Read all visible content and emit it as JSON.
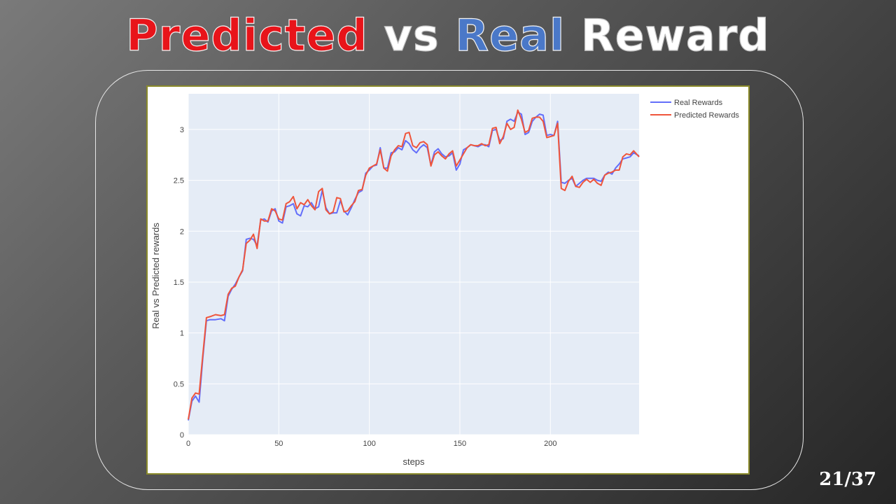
{
  "slide": {
    "title_predicted": "Predicted",
    "title_vs": "vs",
    "title_real": "Real",
    "title_reward": "Reward",
    "page": "21/37"
  },
  "colors": {
    "real": "#636efa",
    "predicted": "#ef553b",
    "plot_bg": "#e5ecf6",
    "title_red": "#e8141a",
    "title_blue": "#4a78c8"
  },
  "chart_data": {
    "type": "line",
    "xlabel": "steps",
    "ylabel": "Real vs Predicted rewards",
    "xlim": [
      0,
      249
    ],
    "ylim": [
      0,
      3.35
    ],
    "xticks": [
      0,
      50,
      100,
      150,
      200
    ],
    "yticks": [
      0,
      0.5,
      1,
      1.5,
      2,
      2.5,
      3
    ],
    "grid": true,
    "legend_position": "top-right-outside",
    "series": [
      {
        "name": "Real Rewards",
        "color": "#636efa",
        "x": [
          0,
          2,
          4,
          6,
          8,
          10,
          12,
          15,
          18,
          20,
          22,
          24,
          26,
          28,
          30,
          32,
          34,
          36,
          38,
          40,
          42,
          44,
          46,
          48,
          50,
          52,
          54,
          56,
          58,
          60,
          62,
          64,
          66,
          68,
          70,
          72,
          74,
          76,
          78,
          80,
          82,
          84,
          86,
          88,
          90,
          92,
          94,
          96,
          98,
          100,
          102,
          104,
          106,
          108,
          110,
          112,
          114,
          116,
          118,
          120,
          122,
          124,
          126,
          128,
          130,
          132,
          134,
          136,
          138,
          140,
          142,
          144,
          146,
          148,
          150,
          152,
          154,
          156,
          158,
          160,
          162,
          164,
          166,
          168,
          170,
          172,
          174,
          176,
          178,
          180,
          182,
          184,
          186,
          188,
          190,
          192,
          194,
          196,
          198,
          200,
          202,
          204,
          206,
          208,
          210,
          212,
          214,
          216,
          218,
          220,
          222,
          224,
          226,
          228,
          230,
          232,
          234,
          236,
          238,
          240,
          242,
          244,
          246,
          249
        ],
        "y": [
          0.14,
          0.33,
          0.38,
          0.32,
          0.75,
          1.12,
          1.13,
          1.13,
          1.14,
          1.12,
          1.36,
          1.43,
          1.48,
          1.55,
          1.61,
          1.92,
          1.93,
          1.92,
          1.86,
          2.11,
          2.12,
          2.09,
          2.2,
          2.22,
          2.1,
          2.08,
          2.24,
          2.25,
          2.27,
          2.17,
          2.15,
          2.25,
          2.24,
          2.28,
          2.22,
          2.24,
          2.4,
          2.23,
          2.17,
          2.18,
          2.18,
          2.3,
          2.2,
          2.16,
          2.23,
          2.31,
          2.38,
          2.4,
          2.57,
          2.6,
          2.64,
          2.65,
          2.82,
          2.62,
          2.62,
          2.77,
          2.78,
          2.82,
          2.8,
          2.89,
          2.86,
          2.8,
          2.77,
          2.82,
          2.85,
          2.82,
          2.65,
          2.78,
          2.81,
          2.76,
          2.73,
          2.74,
          2.77,
          2.6,
          2.66,
          2.8,
          2.82,
          2.85,
          2.84,
          2.83,
          2.85,
          2.85,
          2.83,
          2.99,
          3.0,
          2.89,
          2.91,
          3.08,
          3.1,
          3.08,
          3.17,
          3.15,
          2.95,
          2.97,
          3.08,
          3.12,
          3.15,
          3.14,
          2.94,
          2.95,
          2.94,
          3.08,
          2.48,
          2.47,
          2.5,
          2.52,
          2.44,
          2.47,
          2.5,
          2.52,
          2.52,
          2.52,
          2.5,
          2.49,
          2.55,
          2.58,
          2.56,
          2.62,
          2.66,
          2.71,
          2.72,
          2.73,
          2.77,
          2.74
        ]
      },
      {
        "name": "Predicted Rewards",
        "color": "#ef553b",
        "x": [
          0,
          2,
          4,
          6,
          8,
          10,
          12,
          15,
          18,
          20,
          22,
          24,
          26,
          28,
          30,
          32,
          34,
          36,
          38,
          40,
          42,
          44,
          46,
          48,
          50,
          52,
          54,
          56,
          58,
          60,
          62,
          64,
          66,
          68,
          70,
          72,
          74,
          76,
          78,
          80,
          82,
          84,
          86,
          88,
          90,
          92,
          94,
          96,
          98,
          100,
          102,
          104,
          106,
          108,
          110,
          112,
          114,
          116,
          118,
          120,
          122,
          124,
          126,
          128,
          130,
          132,
          134,
          136,
          138,
          140,
          142,
          144,
          146,
          148,
          150,
          152,
          154,
          156,
          158,
          160,
          162,
          164,
          166,
          168,
          170,
          172,
          174,
          176,
          178,
          180,
          182,
          184,
          186,
          188,
          190,
          192,
          194,
          196,
          198,
          200,
          202,
          204,
          206,
          208,
          210,
          212,
          214,
          216,
          218,
          220,
          222,
          224,
          226,
          228,
          230,
          232,
          234,
          236,
          238,
          240,
          242,
          244,
          246,
          249
        ],
        "y": [
          0.15,
          0.36,
          0.41,
          0.4,
          0.78,
          1.15,
          1.16,
          1.18,
          1.17,
          1.18,
          1.38,
          1.44,
          1.46,
          1.55,
          1.62,
          1.88,
          1.91,
          1.97,
          1.83,
          2.12,
          2.1,
          2.1,
          2.22,
          2.2,
          2.12,
          2.11,
          2.27,
          2.29,
          2.34,
          2.22,
          2.28,
          2.26,
          2.31,
          2.25,
          2.21,
          2.39,
          2.42,
          2.21,
          2.17,
          2.19,
          2.33,
          2.32,
          2.19,
          2.2,
          2.25,
          2.29,
          2.4,
          2.41,
          2.55,
          2.62,
          2.64,
          2.66,
          2.8,
          2.62,
          2.59,
          2.74,
          2.8,
          2.84,
          2.83,
          2.96,
          2.97,
          2.84,
          2.82,
          2.87,
          2.88,
          2.85,
          2.64,
          2.75,
          2.78,
          2.74,
          2.71,
          2.76,
          2.79,
          2.64,
          2.7,
          2.76,
          2.82,
          2.85,
          2.84,
          2.84,
          2.86,
          2.84,
          2.85,
          3.01,
          3.02,
          2.86,
          2.93,
          3.06,
          3.0,
          3.02,
          3.19,
          3.1,
          2.97,
          2.99,
          3.11,
          3.12,
          3.12,
          3.08,
          2.92,
          2.93,
          2.94,
          3.06,
          2.42,
          2.4,
          2.49,
          2.54,
          2.44,
          2.43,
          2.48,
          2.51,
          2.48,
          2.51,
          2.47,
          2.45,
          2.55,
          2.57,
          2.58,
          2.6,
          2.6,
          2.73,
          2.76,
          2.75,
          2.79,
          2.73
        ]
      }
    ]
  }
}
